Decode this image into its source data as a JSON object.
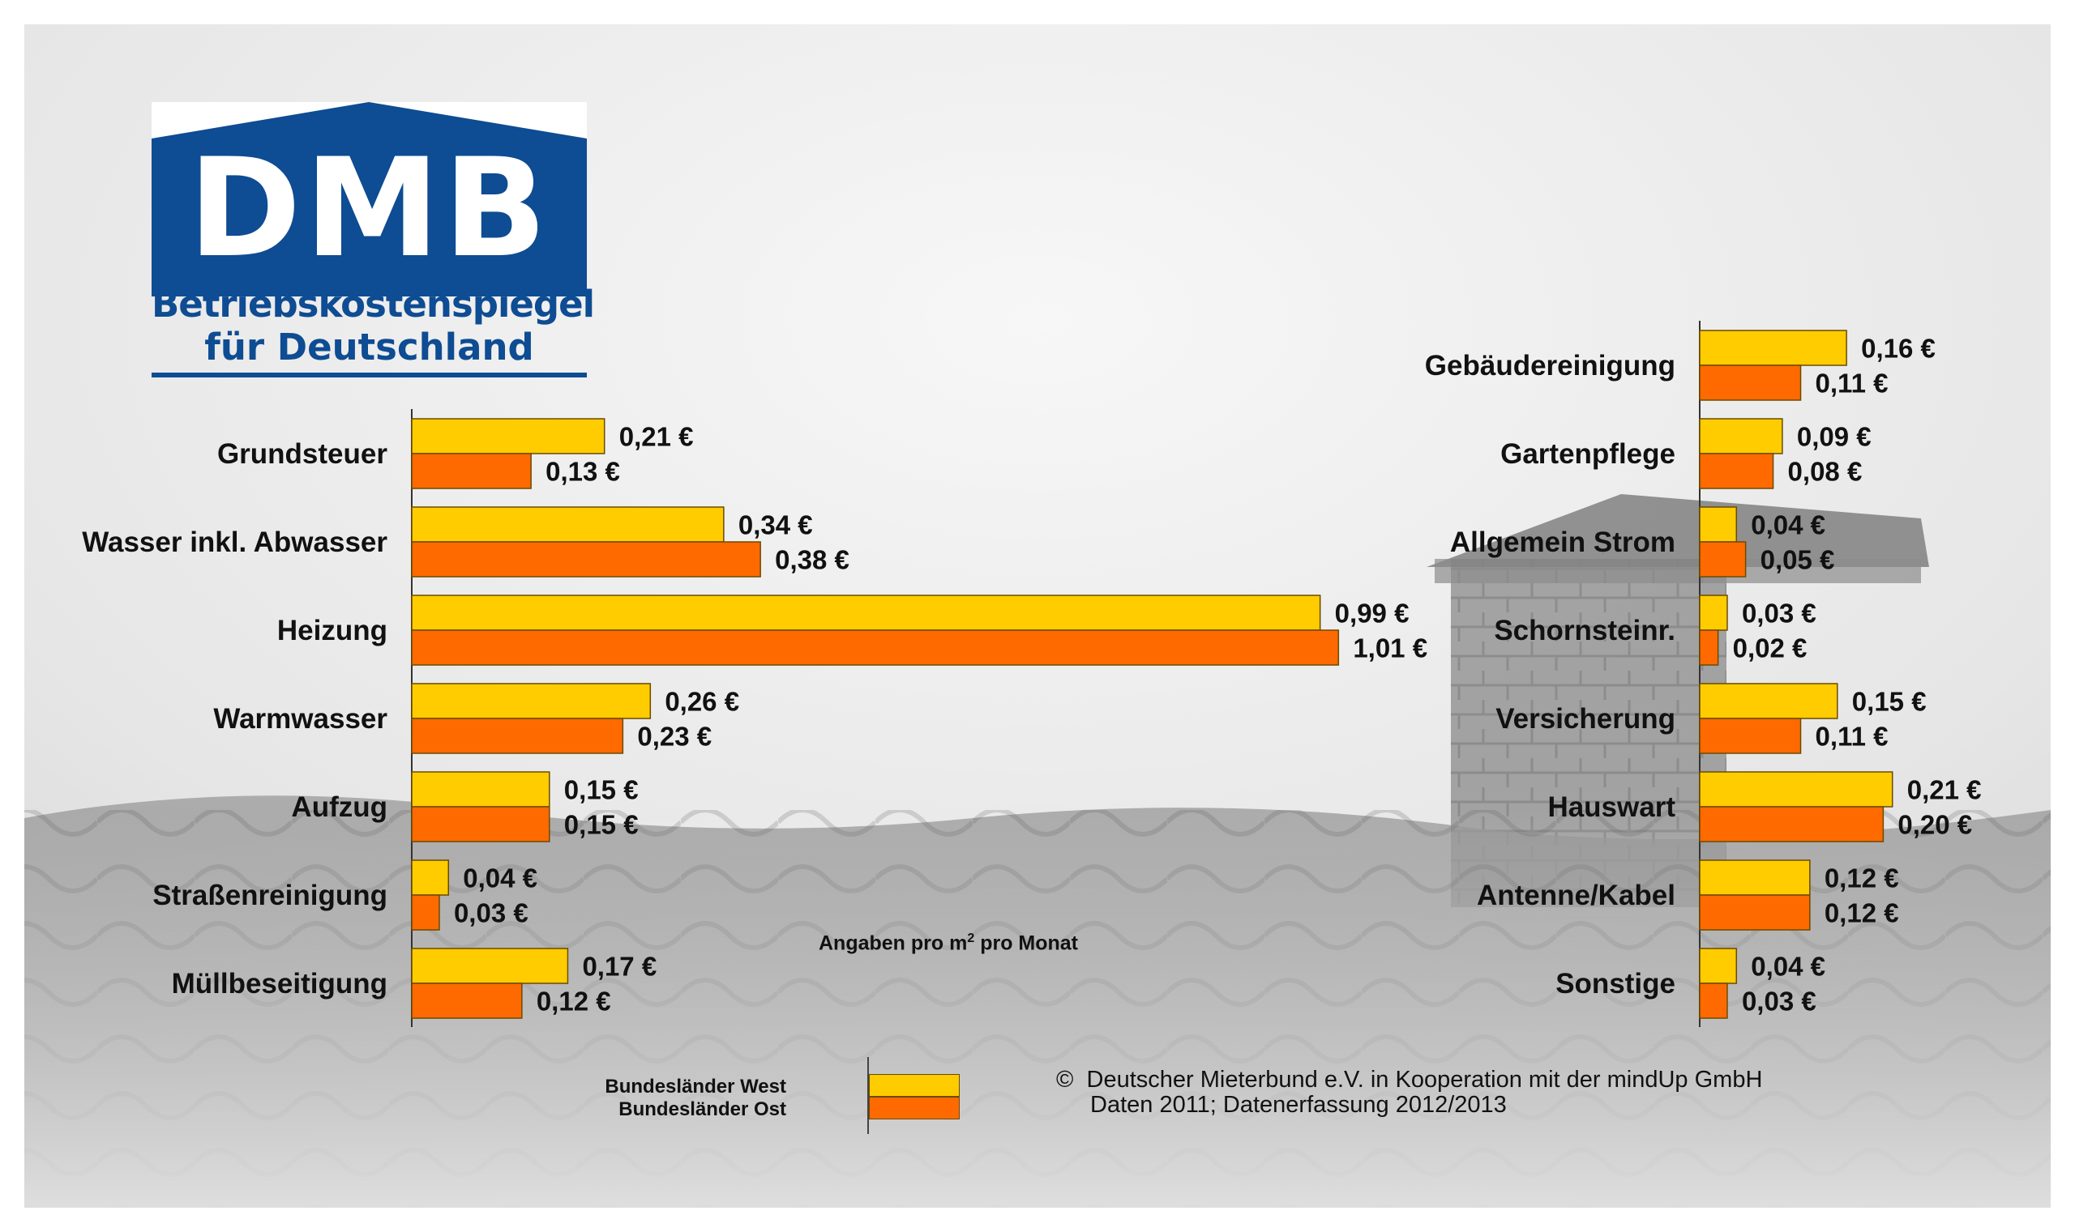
{
  "logo": {
    "wordmark": "DMB",
    "line1": "Betriebskostenspiegel",
    "line2": "für Deutschland"
  },
  "colors": {
    "west": "#ffcc00",
    "ost": "#ff6a00",
    "logo_blue": "#0e4c93"
  },
  "note": {
    "text_before": "Angaben pro m",
    "superscript": "2",
    "text_after": " pro Monat"
  },
  "legend": {
    "west": "Bundesländer West",
    "ost": "Bundesländer Ost"
  },
  "credit": {
    "symbol": "©",
    "line1": "Deutscher Mieterbund e.V. in Kooperation mit der mindUp GmbH",
    "line2": "Daten 2011; Datenerfassung 2012/2013"
  },
  "chart_data": [
    {
      "type": "bar",
      "orientation": "horizontal",
      "categories": [
        "Grundsteuer",
        "Wasser inkl. Abwasser",
        "Heizung",
        "Warmwasser",
        "Aufzug",
        "Straßenreinigung",
        "Müllbeseitigung"
      ],
      "series": [
        {
          "name": "Bundesländer West",
          "values": [
            0.21,
            0.34,
            0.99,
            0.26,
            0.15,
            0.04,
            0.17
          ],
          "labels": [
            "0,21 €",
            "0,34 €",
            "0,99 €",
            "0,26 €",
            "0,15 €",
            "0,04 €",
            "0,17 €"
          ]
        },
        {
          "name": "Bundesländer Ost",
          "values": [
            0.13,
            0.38,
            1.01,
            0.23,
            0.15,
            0.03,
            0.12
          ],
          "labels": [
            "0,13 €",
            "0,38 €",
            "1,01 €",
            "0,23 €",
            "0,15 €",
            "0,03 €",
            "0,12 €"
          ]
        }
      ],
      "unit": "€ pro m² pro Monat",
      "grid": false
    },
    {
      "type": "bar",
      "orientation": "horizontal",
      "categories": [
        "Gebäudereinigung",
        "Gartenpflege",
        "Allgemein Strom",
        "Schornsteinr.",
        "Versicherung",
        "Hauswart",
        "Antenne/Kabel",
        "Sonstige"
      ],
      "series": [
        {
          "name": "Bundesländer West",
          "values": [
            0.16,
            0.09,
            0.04,
            0.03,
            0.15,
            0.21,
            0.12,
            0.04
          ],
          "labels": [
            "0,16 €",
            "0,09 €",
            "0,04 €",
            "0,03 €",
            "0,15 €",
            "0,21 €",
            "0,12 €",
            "0,04 €"
          ]
        },
        {
          "name": "Bundesländer Ost",
          "values": [
            0.11,
            0.08,
            0.05,
            0.02,
            0.11,
            0.2,
            0.12,
            0.03
          ],
          "labels": [
            "0,11 €",
            "0,08 €",
            "0,05 €",
            "0,02 €",
            "0,11 €",
            "0,20 €",
            "0,12 €",
            "0,03 €"
          ]
        }
      ],
      "unit": "€ pro m² pro Monat",
      "grid": false
    }
  ]
}
